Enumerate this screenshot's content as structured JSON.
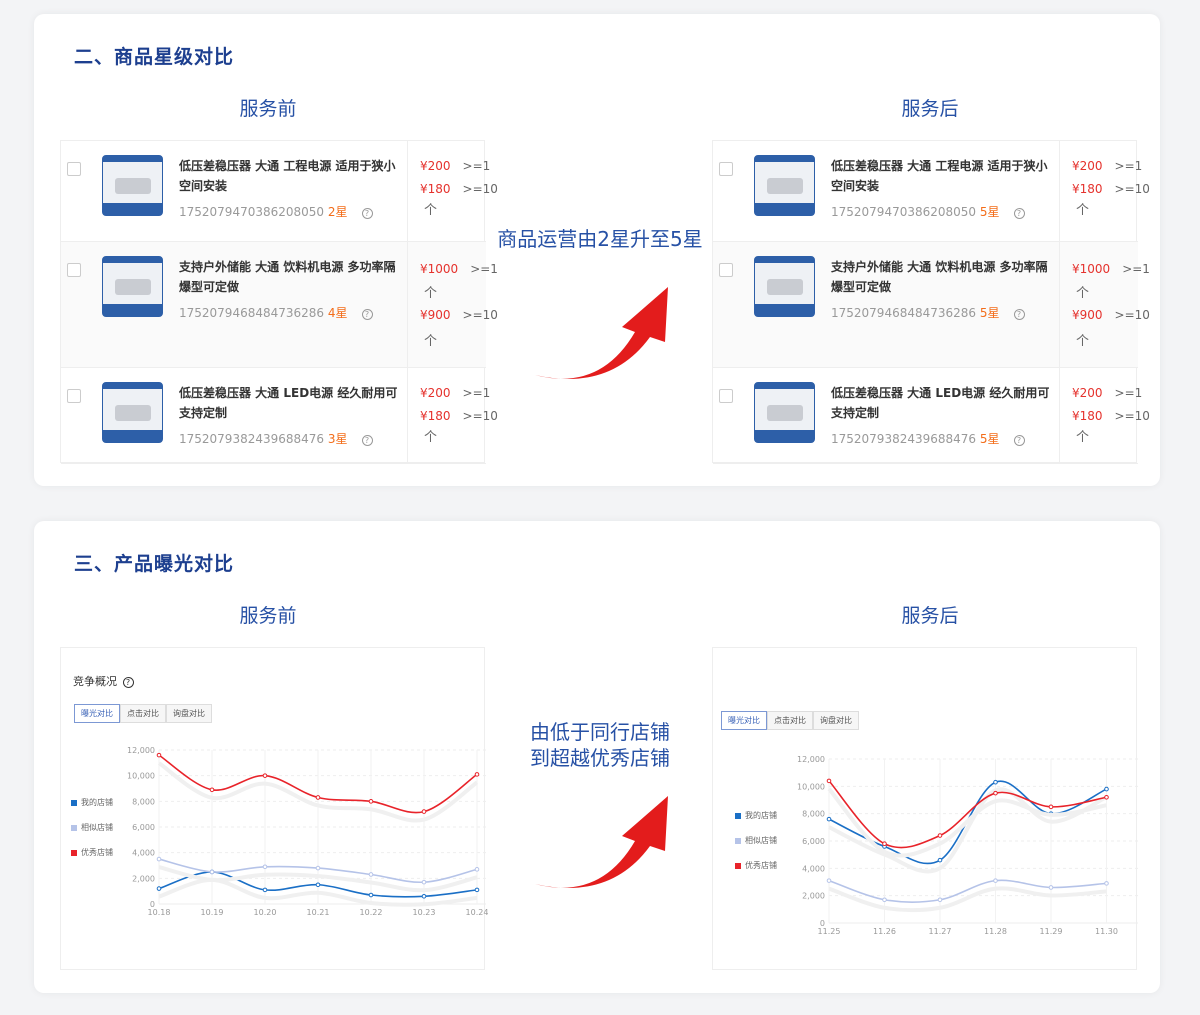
{
  "section1": {
    "title": "二、商品星级对比",
    "before": "服务前",
    "after": "服务后",
    "middle": "商品运营由2星升至5星",
    "before_products": [
      {
        "title": "低压差稳压器 大通 工程电源 适用于狭小空间安装",
        "id": "1752079470386208050",
        "stars": "2星",
        "prices": [
          {
            "p": "¥200",
            "q": ">=1"
          },
          {
            "p": "¥180",
            "q": ">=10"
          }
        ]
      },
      {
        "title": "支持户外储能 大通 饮料机电源 多功率隔爆型可定做",
        "id": "1752079468484736286",
        "stars": "4星",
        "prices": [
          {
            "p": "¥1000",
            "q": ">=1"
          },
          {
            "p": "¥900",
            "q": ">=10"
          }
        ]
      },
      {
        "title": "低压差稳压器 大通 LED电源 经久耐用可支持定制",
        "id": "1752079382439688476",
        "stars": "3星",
        "prices": [
          {
            "p": "¥200",
            "q": ">=1"
          },
          {
            "p": "¥180",
            "q": ">=10"
          }
        ]
      }
    ],
    "after_products": [
      {
        "title": "低压差稳压器 大通 工程电源 适用于狭小空间安装",
        "id": "1752079470386208050",
        "stars": "5星",
        "prices": [
          {
            "p": "¥200",
            "q": ">=1"
          },
          {
            "p": "¥180",
            "q": ">=10"
          }
        ]
      },
      {
        "title": "支持户外储能 大通 饮料机电源 多功率隔爆型可定做",
        "id": "1752079468484736286",
        "stars": "5星",
        "prices": [
          {
            "p": "¥1000",
            "q": ">=1"
          },
          {
            "p": "¥900",
            "q": ">=10"
          }
        ]
      },
      {
        "title": "低压差稳压器 大通 LED电源 经久耐用可支持定制",
        "id": "1752079382439688476",
        "stars": "5星",
        "prices": [
          {
            "p": "¥200",
            "q": ">=1"
          },
          {
            "p": "¥180",
            "q": ">=10"
          }
        ]
      }
    ],
    "up_glyph": "个"
  },
  "section2": {
    "title": "三、产品曝光对比",
    "before": "服务前",
    "after": "服务后",
    "middle_line1": "由低于同行店铺",
    "middle_line2": "到超越优秀店铺",
    "panel_title": "竞争概况",
    "tabs": [
      "曝光对比",
      "点击对比",
      "询盘对比"
    ],
    "legend": [
      "我的店铺",
      "相似店铺",
      "优秀店铺"
    ]
  },
  "colors": {
    "mine": "#1a6fc6",
    "similar": "#b5c3e8",
    "excellent": "#e8232a",
    "accent": "#2751a5"
  },
  "chart_data": [
    {
      "type": "line",
      "x": [
        "10.18",
        "10.19",
        "10.20",
        "10.21",
        "10.22",
        "10.23",
        "10.24"
      ],
      "ylim": [
        0,
        12000
      ],
      "yticks": [
        0,
        2000,
        4000,
        6000,
        8000,
        10000,
        12000
      ],
      "grid": true,
      "legend": "left",
      "series": [
        {
          "name": "我的店铺",
          "values": [
            1200,
            2500,
            1100,
            1500,
            700,
            600,
            1100
          ]
        },
        {
          "name": "相似店铺",
          "values": [
            3500,
            2500,
            2900,
            2800,
            2300,
            1700,
            2700
          ]
        },
        {
          "name": "优秀店铺",
          "values": [
            11600,
            8900,
            10000,
            8300,
            8000,
            7200,
            10100
          ]
        }
      ]
    },
    {
      "type": "line",
      "x": [
        "11.25",
        "11.26",
        "11.27",
        "11.28",
        "11.29",
        "11.30"
      ],
      "ylim": [
        0,
        12000
      ],
      "yticks": [
        0,
        2000,
        4000,
        6000,
        8000,
        10000,
        12000
      ],
      "grid": true,
      "legend": "left",
      "series": [
        {
          "name": "我的店铺",
          "values": [
            7600,
            5600,
            4600,
            10300,
            8000,
            9800
          ]
        },
        {
          "name": "相似店铺",
          "values": [
            3100,
            1700,
            1700,
            3100,
            2600,
            2900
          ]
        },
        {
          "name": "优秀店铺",
          "values": [
            10400,
            5800,
            6400,
            9500,
            8500,
            9200
          ]
        }
      ]
    }
  ]
}
